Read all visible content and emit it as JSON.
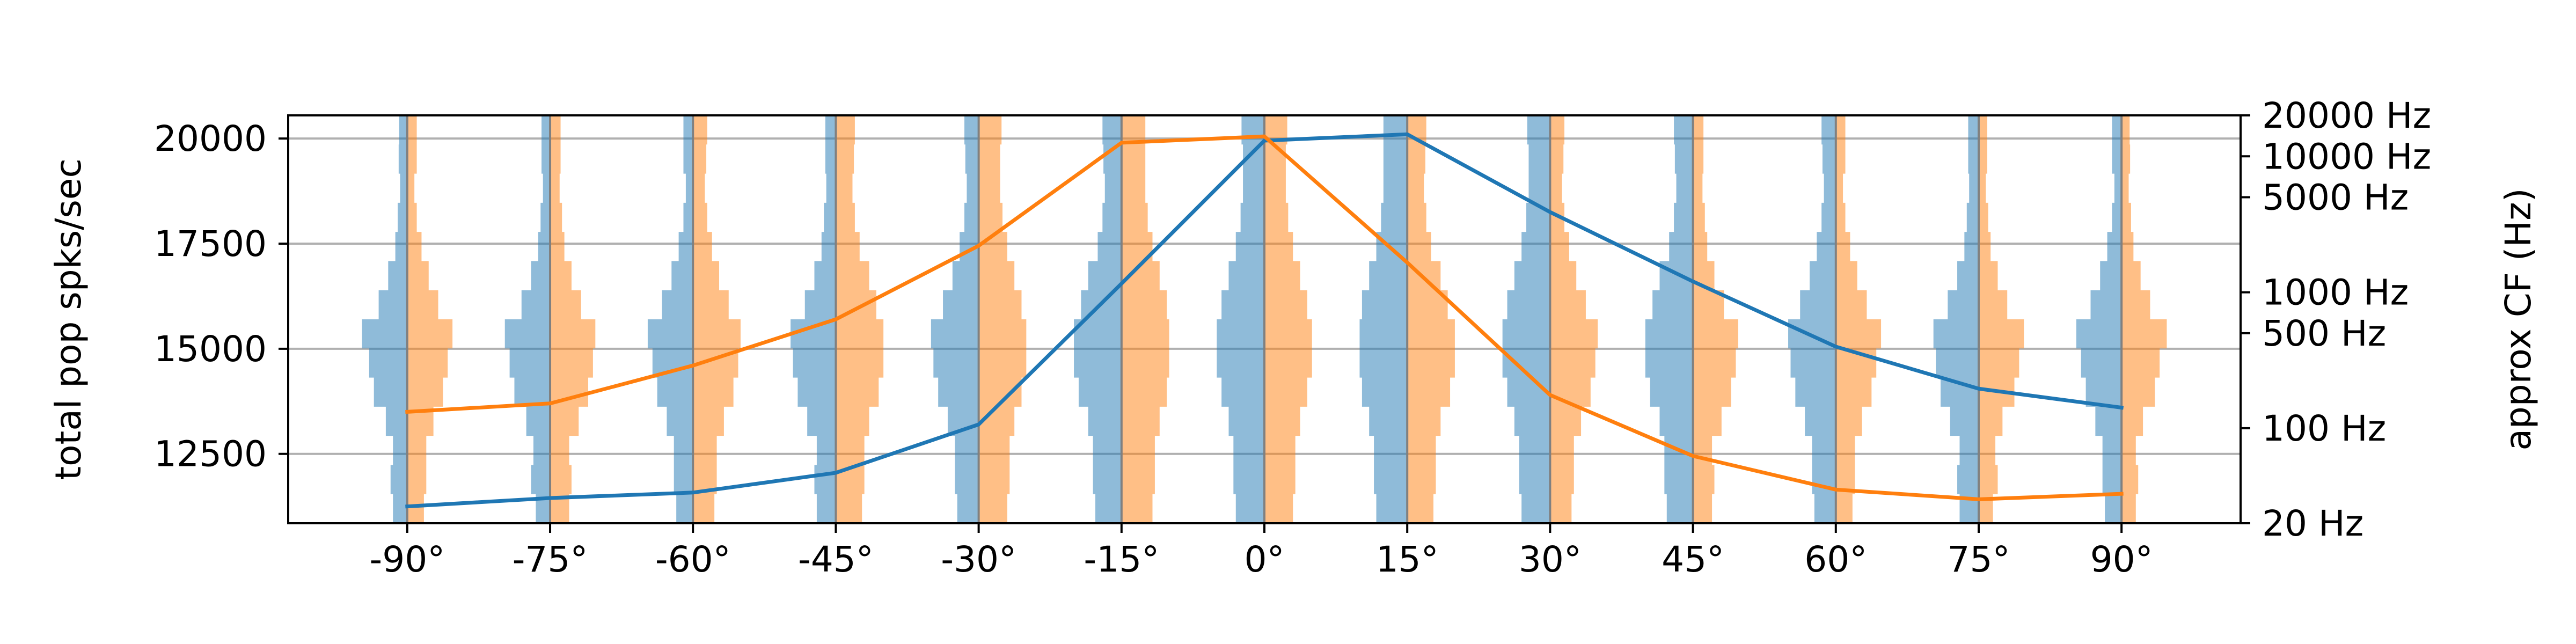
{
  "chart_data": {
    "type": "line",
    "title": "",
    "xlabel": "",
    "ylabel": "total pop spks/sec",
    "ylabel_right": "approx CF (Hz)",
    "x": [
      -90,
      -75,
      -60,
      -45,
      -30,
      -15,
      0,
      15,
      30,
      45,
      60,
      75,
      90
    ],
    "x_tick_labels": [
      "-90°",
      "-75°",
      "-60°",
      "-45°",
      "-30°",
      "-15°",
      "0°",
      "15°",
      "30°",
      "45°",
      "60°",
      "75°",
      "90°"
    ],
    "xlim": [
      -102.5,
      102.5
    ],
    "ylim": [
      10850,
      20550
    ],
    "y_ticks": [
      12500,
      15000,
      17500,
      20000
    ],
    "y_tick_labels": [
      "12500",
      "15000",
      "17500",
      "20000"
    ],
    "right_axis": {
      "scale": "log",
      "ticks": [
        20,
        100,
        500,
        1000,
        5000,
        10000,
        20000
      ],
      "tick_labels": [
        "20 Hz",
        "100 Hz",
        "500 Hz",
        "1000 Hz",
        "5000 Hz",
        "10000 Hz",
        "20000 Hz"
      ],
      "ylim": [
        20,
        20000
      ]
    },
    "grid": "horizontal",
    "series": [
      {
        "color": "#1f77b4",
        "values": [
          11250,
          11450,
          11580,
          12050,
          13200,
          16550,
          19950,
          20100,
          18250,
          16600,
          15050,
          14050,
          13600
        ]
      },
      {
        "color": "#ff7f0e",
        "values": [
          13500,
          13700,
          14600,
          15700,
          17450,
          19900,
          20050,
          17050,
          13900,
          12450,
          11650,
          11420,
          11550
        ]
      }
    ],
    "profiles": {
      "colors": {
        "left": "#1f77b4",
        "right": "#ff7f0e"
      },
      "alpha": 0.5,
      "max_width_deg": 5,
      "left": [
        [
          0.3,
          0.35,
          0.3,
          0.45,
          0.7,
          0.8,
          0.95,
          0.6,
          0.4,
          0.25,
          0.2,
          0.15,
          0.18,
          0.17
        ],
        [
          0.3,
          0.4,
          0.35,
          0.5,
          0.75,
          0.85,
          0.95,
          0.6,
          0.4,
          0.25,
          0.2,
          0.15,
          0.18,
          0.18
        ],
        [
          0.35,
          0.4,
          0.4,
          0.55,
          0.75,
          0.85,
          0.95,
          0.65,
          0.45,
          0.3,
          0.2,
          0.15,
          0.2,
          0.2
        ],
        [
          0.4,
          0.45,
          0.4,
          0.6,
          0.8,
          0.9,
          0.95,
          0.65,
          0.45,
          0.3,
          0.25,
          0.2,
          0.22,
          0.22
        ],
        [
          0.45,
          0.5,
          0.5,
          0.65,
          0.85,
          0.95,
          1.0,
          0.75,
          0.55,
          0.4,
          0.3,
          0.25,
          0.28,
          0.3
        ],
        [
          0.55,
          0.6,
          0.6,
          0.7,
          0.9,
          1.0,
          1.0,
          0.85,
          0.7,
          0.5,
          0.4,
          0.35,
          0.38,
          0.4
        ],
        [
          0.6,
          0.65,
          0.65,
          0.75,
          0.9,
          1.0,
          1.0,
          0.9,
          0.75,
          0.6,
          0.5,
          0.45,
          0.45,
          0.48
        ],
        [
          0.65,
          0.7,
          0.7,
          0.8,
          0.95,
          1.0,
          1.0,
          0.95,
          0.8,
          0.65,
          0.55,
          0.5,
          0.5,
          0.5
        ],
        [
          0.6,
          0.65,
          0.65,
          0.75,
          0.9,
          1.0,
          1.0,
          0.9,
          0.75,
          0.6,
          0.5,
          0.45,
          0.45,
          0.48
        ],
        [
          0.55,
          0.6,
          0.6,
          0.7,
          0.9,
          1.0,
          1.0,
          0.85,
          0.7,
          0.5,
          0.4,
          0.35,
          0.38,
          0.4
        ],
        [
          0.45,
          0.5,
          0.5,
          0.65,
          0.85,
          0.95,
          1.0,
          0.75,
          0.55,
          0.4,
          0.3,
          0.25,
          0.28,
          0.3
        ],
        [
          0.4,
          0.45,
          0.4,
          0.6,
          0.8,
          0.9,
          0.95,
          0.65,
          0.45,
          0.3,
          0.25,
          0.2,
          0.22,
          0.22
        ],
        [
          0.35,
          0.4,
          0.4,
          0.55,
          0.75,
          0.85,
          0.95,
          0.65,
          0.45,
          0.3,
          0.2,
          0.15,
          0.2,
          0.2
        ]
      ],
      "right": [
        [
          0.35,
          0.4,
          0.4,
          0.55,
          0.75,
          0.85,
          0.95,
          0.65,
          0.45,
          0.3,
          0.2,
          0.15,
          0.2,
          0.2
        ],
        [
          0.4,
          0.45,
          0.4,
          0.6,
          0.8,
          0.9,
          0.95,
          0.65,
          0.45,
          0.3,
          0.25,
          0.2,
          0.22,
          0.22
        ],
        [
          0.45,
          0.5,
          0.5,
          0.65,
          0.85,
          0.95,
          1.0,
          0.75,
          0.55,
          0.4,
          0.3,
          0.25,
          0.28,
          0.3
        ],
        [
          0.55,
          0.6,
          0.6,
          0.7,
          0.9,
          1.0,
          1.0,
          0.85,
          0.7,
          0.5,
          0.4,
          0.35,
          0.38,
          0.4
        ],
        [
          0.6,
          0.65,
          0.65,
          0.75,
          0.9,
          1.0,
          1.0,
          0.9,
          0.75,
          0.6,
          0.5,
          0.45,
          0.45,
          0.48
        ],
        [
          0.65,
          0.7,
          0.7,
          0.8,
          0.95,
          1.0,
          1.0,
          0.95,
          0.8,
          0.65,
          0.55,
          0.5,
          0.5,
          0.5
        ],
        [
          0.6,
          0.65,
          0.65,
          0.75,
          0.9,
          1.0,
          1.0,
          0.9,
          0.75,
          0.6,
          0.5,
          0.45,
          0.45,
          0.48
        ],
        [
          0.55,
          0.6,
          0.6,
          0.7,
          0.9,
          1.0,
          1.0,
          0.85,
          0.7,
          0.5,
          0.4,
          0.35,
          0.38,
          0.4
        ],
        [
          0.45,
          0.5,
          0.5,
          0.65,
          0.85,
          0.95,
          1.0,
          0.75,
          0.55,
          0.4,
          0.3,
          0.25,
          0.28,
          0.3
        ],
        [
          0.4,
          0.45,
          0.4,
          0.6,
          0.8,
          0.9,
          0.95,
          0.65,
          0.45,
          0.3,
          0.25,
          0.2,
          0.22,
          0.22
        ],
        [
          0.35,
          0.4,
          0.4,
          0.55,
          0.75,
          0.85,
          0.95,
          0.65,
          0.45,
          0.3,
          0.2,
          0.15,
          0.2,
          0.2
        ],
        [
          0.3,
          0.4,
          0.35,
          0.5,
          0.75,
          0.85,
          0.95,
          0.6,
          0.4,
          0.25,
          0.2,
          0.15,
          0.18,
          0.18
        ],
        [
          0.3,
          0.35,
          0.3,
          0.45,
          0.7,
          0.8,
          0.95,
          0.6,
          0.4,
          0.25,
          0.2,
          0.15,
          0.18,
          0.17
        ]
      ]
    }
  }
}
